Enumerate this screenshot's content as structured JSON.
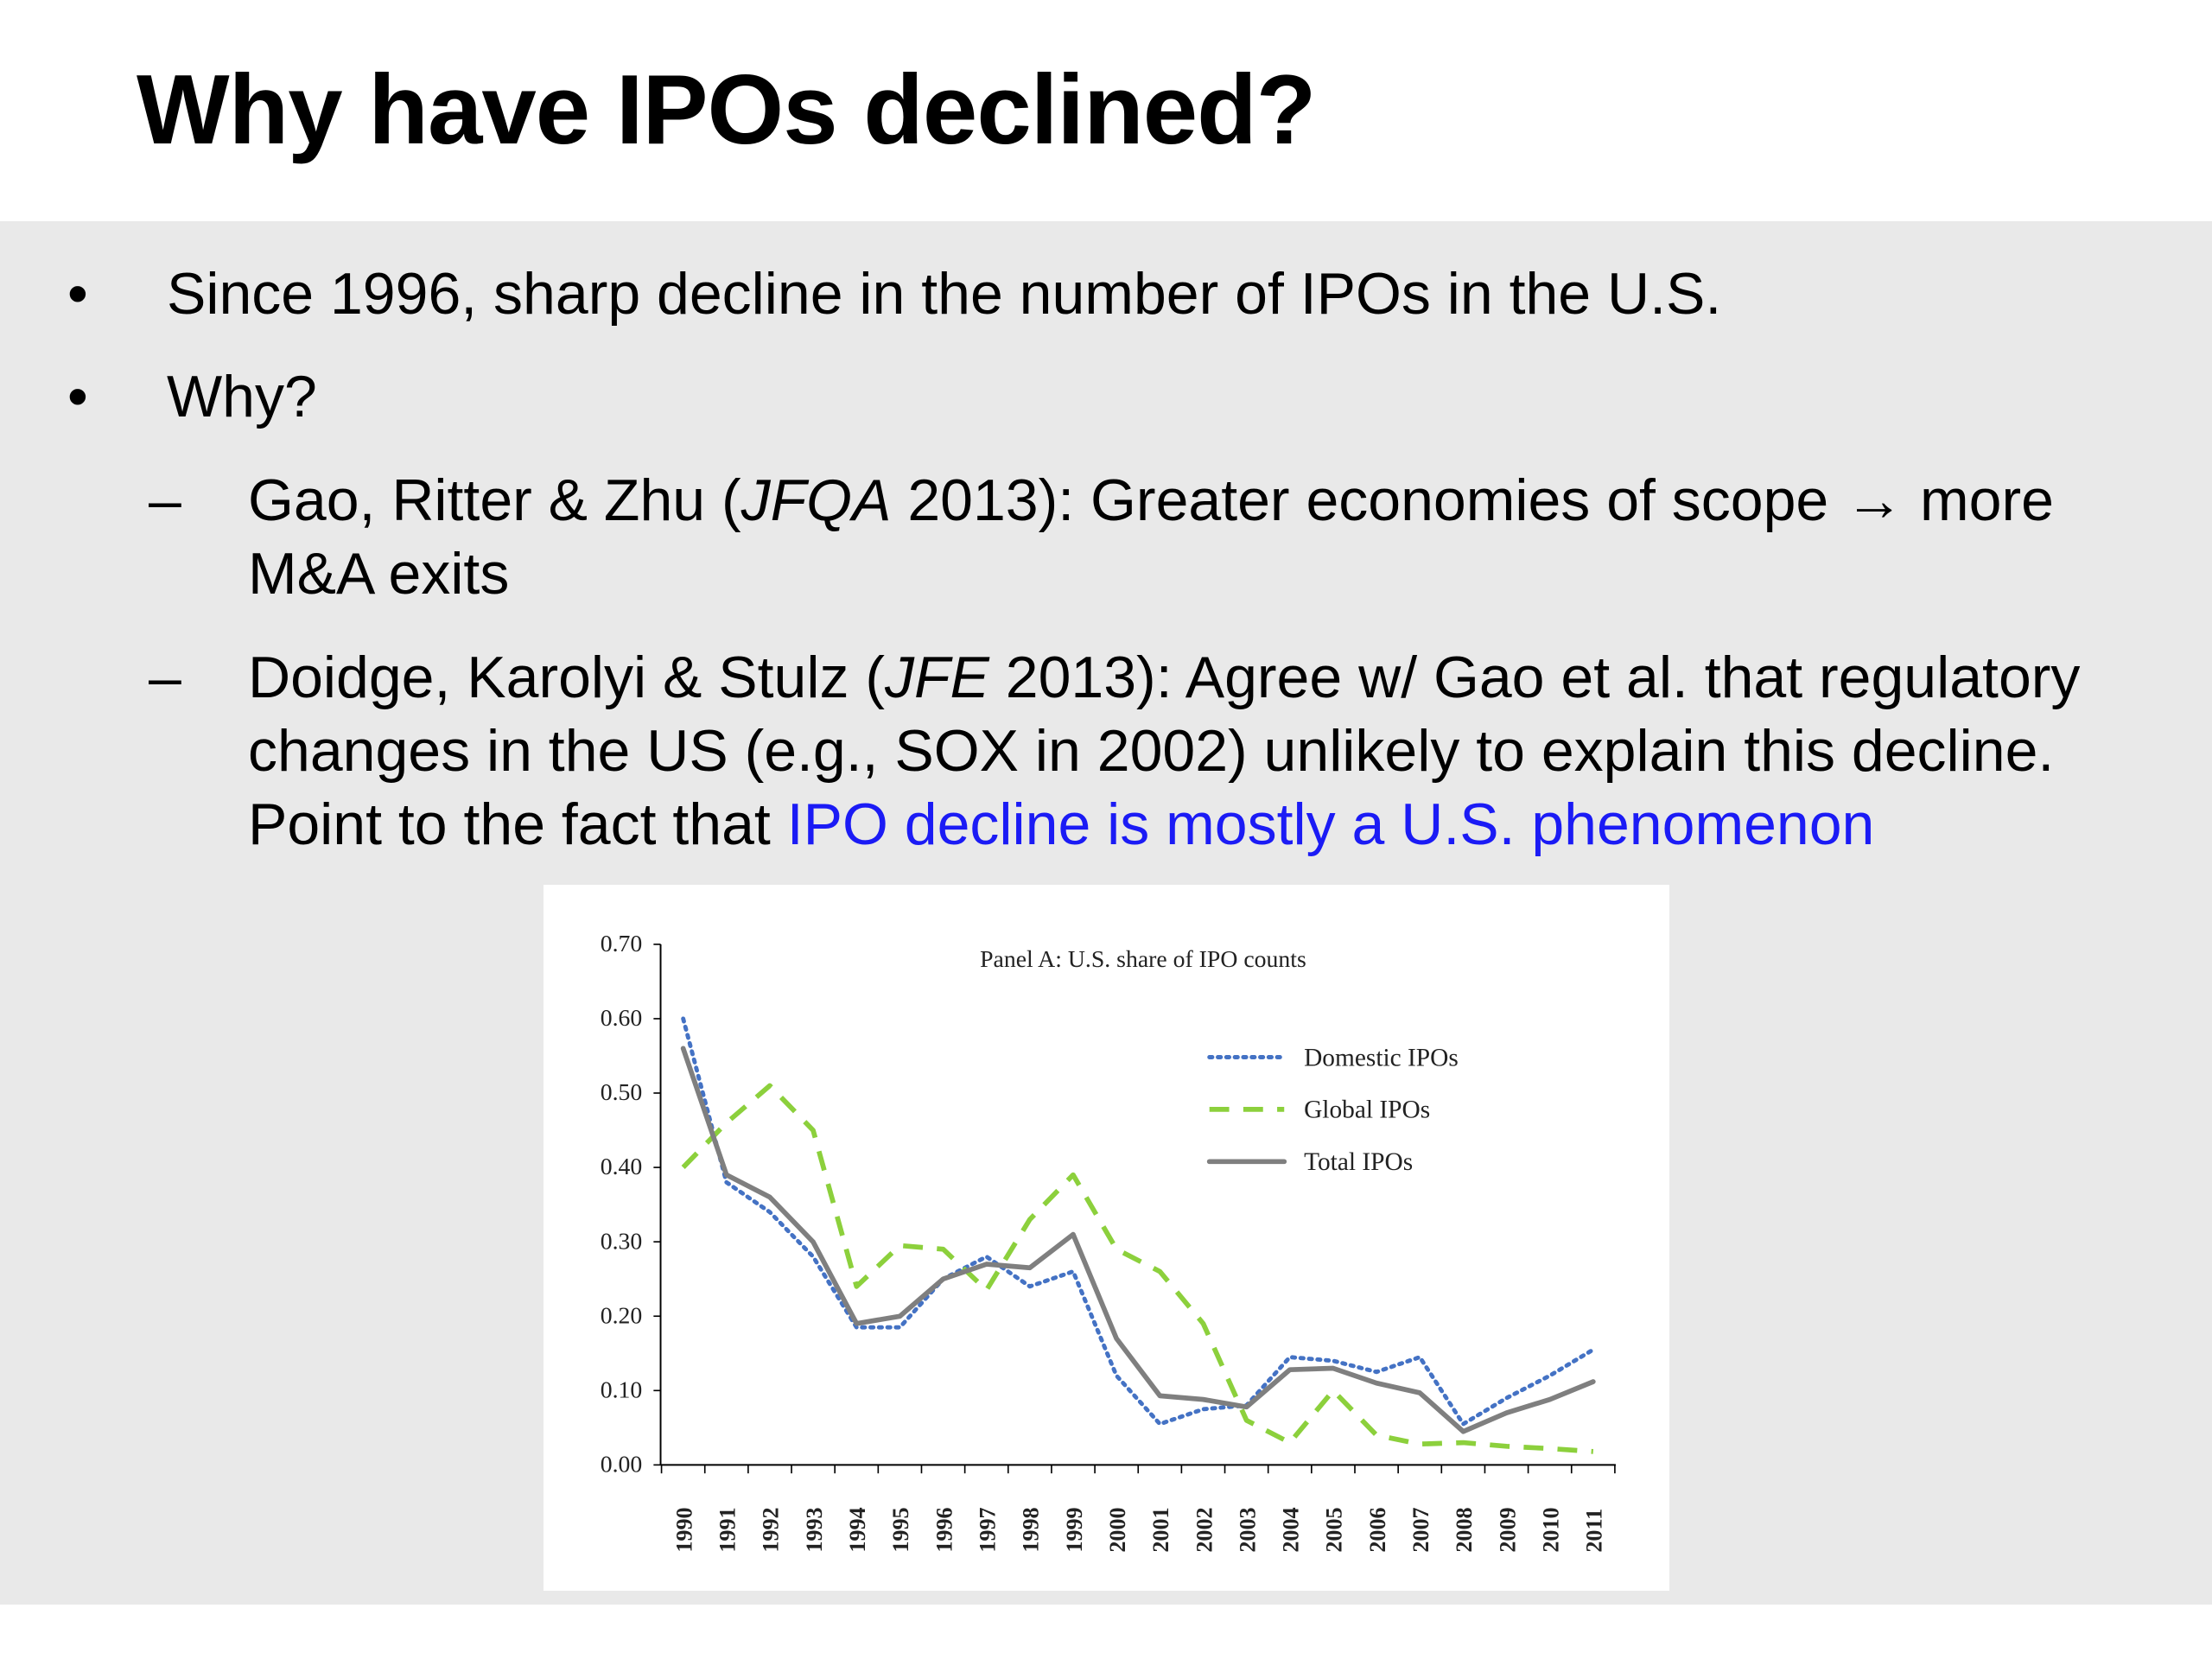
{
  "slide": {
    "title": "Why have IPOs declined?",
    "bullets": [
      {
        "marker": "•",
        "text": "Since 1996, sharp decline in the number of IPOs in the U.S."
      },
      {
        "marker": "•",
        "text": "Why?"
      }
    ],
    "sub_bullets": [
      {
        "marker": "–",
        "lines": [
          {
            "pre": "Gao, Ritter & Zhu (",
            "italic": "JFQA",
            "post": " 2013): Greater economies of scope → more"
          },
          {
            "pre": "M&A exits"
          }
        ]
      },
      {
        "marker": "–",
        "lines": [
          {
            "pre": "Doidge, Karolyi & Stulz (",
            "italic": "JFE",
            "post": " 2013): Agree w/ Gao et al. that regulatory"
          },
          {
            "pre": "changes in the US (e.g., SOX in 2002) unlikely to explain this decline."
          },
          {
            "pre": "Point to the fact that ",
            "link": "IPO decline is mostly a U.S. phenomenon"
          }
        ]
      }
    ],
    "link_color": "#1b1bf5"
  },
  "chart_data": {
    "type": "line",
    "title": "Panel A: U.S. share of IPO counts",
    "xlabel": "",
    "ylabel": "",
    "ylim": [
      0,
      0.7
    ],
    "yticks": [
      "0.00",
      "0.10",
      "0.20",
      "0.30",
      "0.40",
      "0.50",
      "0.60",
      "0.70"
    ],
    "x": [
      "1990",
      "1991",
      "1992",
      "1993",
      "1994",
      "1995",
      "1996",
      "1997",
      "1998",
      "1999",
      "2000",
      "2001",
      "2002",
      "2003",
      "2004",
      "2005",
      "2006",
      "2007",
      "2008",
      "2009",
      "2010",
      "2011"
    ],
    "legend_position": "top-right",
    "series": [
      {
        "name": "Domestic IPOs",
        "style": "dotted",
        "color": "#4472c4",
        "values": [
          0.6,
          0.38,
          0.34,
          0.28,
          0.185,
          0.185,
          0.25,
          0.28,
          0.24,
          0.26,
          0.12,
          0.055,
          0.075,
          0.08,
          0.145,
          0.14,
          0.125,
          0.145,
          0.055,
          0.09,
          0.12,
          0.155
        ]
      },
      {
        "name": "Global IPOs",
        "style": "dashed",
        "color": "#8cd03c",
        "values": [
          0.4,
          0.46,
          0.51,
          0.45,
          0.24,
          0.295,
          0.29,
          0.235,
          0.33,
          0.39,
          0.29,
          0.26,
          0.19,
          0.06,
          0.03,
          0.1,
          0.04,
          0.028,
          0.03,
          0.025,
          0.022,
          0.018
        ]
      },
      {
        "name": "Total IPOs",
        "style": "solid",
        "color": "#7f7f7f",
        "values": [
          0.56,
          0.39,
          0.36,
          0.3,
          0.19,
          0.2,
          0.25,
          0.27,
          0.265,
          0.31,
          0.17,
          0.093,
          0.088,
          0.078,
          0.128,
          0.13,
          0.11,
          0.097,
          0.045,
          0.07,
          0.088,
          0.112
        ]
      }
    ]
  }
}
